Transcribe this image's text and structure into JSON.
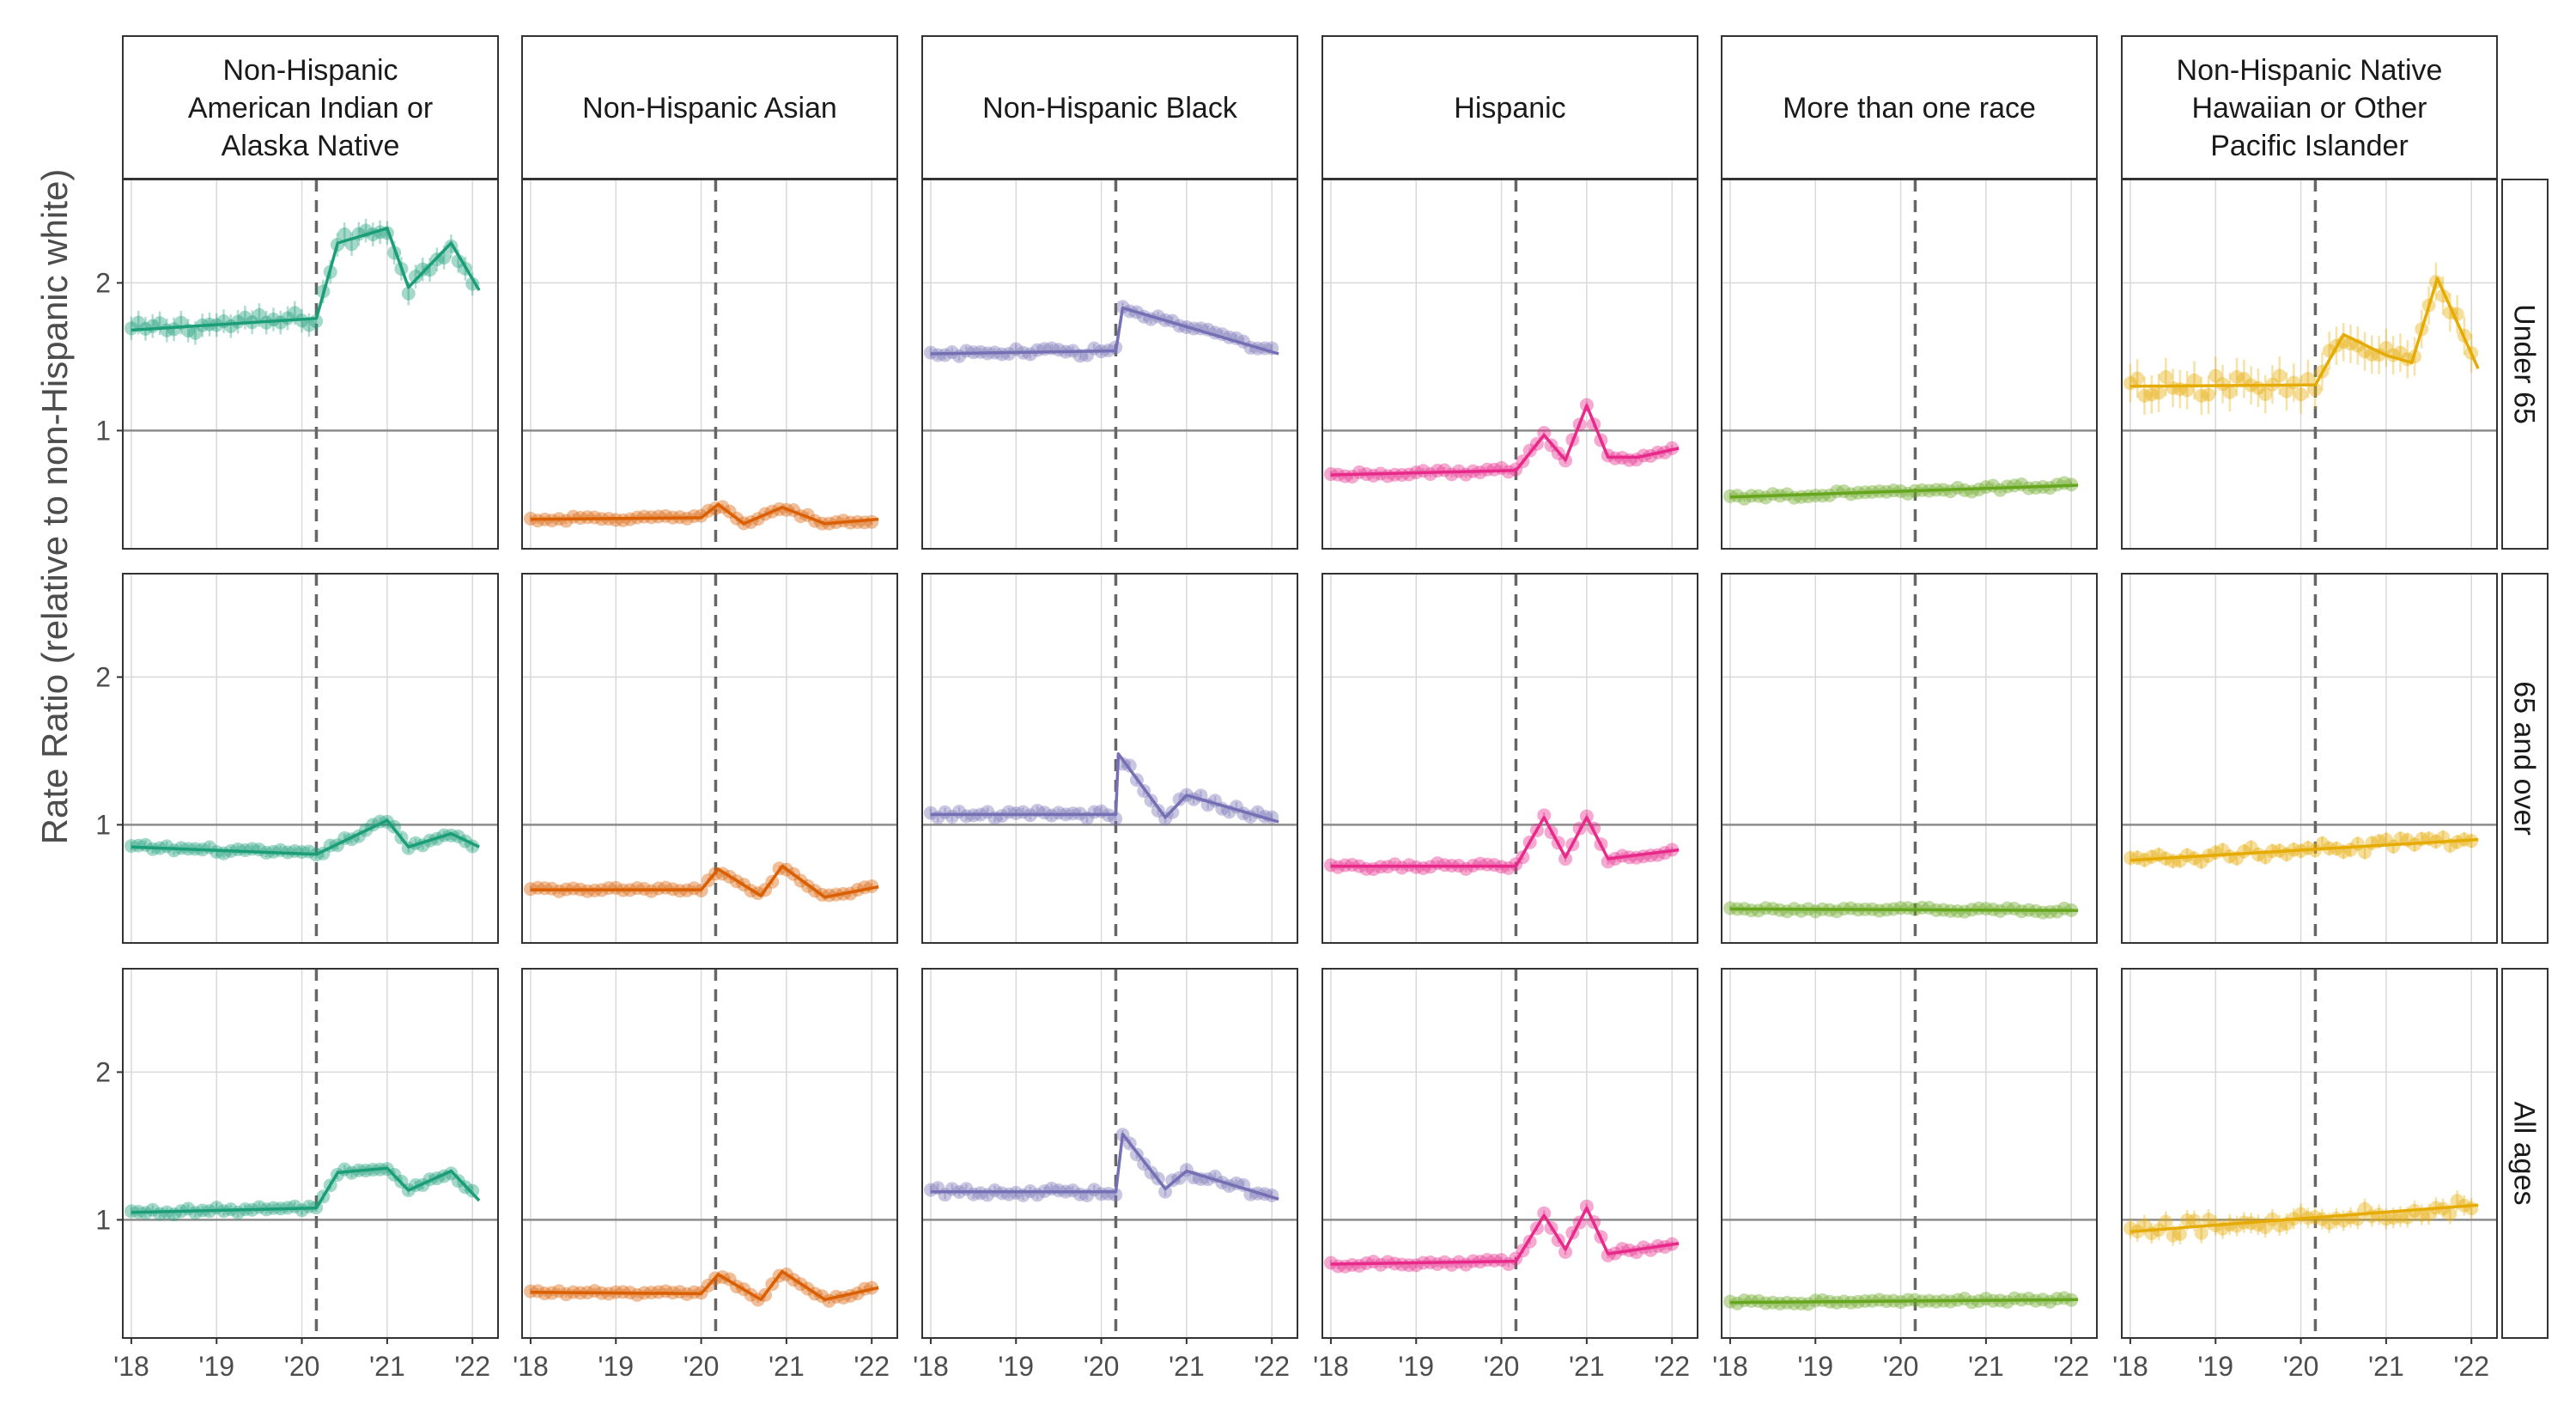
{
  "chart_data": {
    "type": "scatter",
    "ylabel": "Rate Ratio (relative to non-Hispanic white)",
    "y_ticks": [
      "1",
      "2"
    ],
    "x_ticks": [
      "'18",
      "'19",
      "'20",
      "'21",
      "'22"
    ],
    "ylim": [
      0.2,
      2.7
    ],
    "xlim": [
      2017.9,
      2022.3
    ],
    "pandemic_onset": 2020.17,
    "reference_line": 1,
    "columns": [
      {
        "label": "Non-Hispanic American Indian or Alaska Native",
        "lines": [
          "Non-Hispanic",
          "American Indian or",
          "Alaska Native"
        ],
        "color": "#1b9e77"
      },
      {
        "label": "Non-Hispanic Asian",
        "lines": [
          "Non-Hispanic Asian"
        ],
        "color": "#d95f02"
      },
      {
        "label": "Non-Hispanic Black",
        "lines": [
          "Non-Hispanic Black"
        ],
        "color": "#7570b3"
      },
      {
        "label": "Hispanic",
        "lines": [
          "Hispanic"
        ],
        "color": "#e7298a"
      },
      {
        "label": "More than one race",
        "lines": [
          "More than one race"
        ],
        "color": "#66a61e"
      },
      {
        "label": "Non-Hispanic Native Hawaiian or Other Pacific Islander",
        "lines": [
          "Non-Hispanic Native",
          "Hawaiian or Other",
          "Pacific Islander"
        ],
        "color": "#e6ab02"
      }
    ],
    "rows": [
      "Under 65",
      "65 and over",
      "All ages"
    ],
    "panels": [
      [
        {
          "trend": [
            [
              2018,
              1.68
            ],
            [
              2020.17,
              1.76
            ],
            [
              2020.42,
              2.27
            ],
            [
              2021.0,
              2.37
            ],
            [
              2021.25,
              1.97
            ],
            [
              2021.75,
              2.27
            ],
            [
              2022.08,
              1.95
            ]
          ],
          "noise": 0.05,
          "err": 0.08
        },
        {
          "trend": [
            [
              2018,
              0.4
            ],
            [
              2020.0,
              0.41
            ],
            [
              2020.2,
              0.5
            ],
            [
              2020.5,
              0.37
            ],
            [
              2020.95,
              0.48
            ],
            [
              2021.45,
              0.37
            ],
            [
              2022.08,
              0.4
            ]
          ],
          "noise": 0.015,
          "err": 0.02
        },
        {
          "trend": [
            [
              2018,
              1.52
            ],
            [
              2020.17,
              1.54
            ],
            [
              2020.25,
              1.83
            ],
            [
              2022.08,
              1.52
            ]
          ],
          "noise": 0.03,
          "err": 0.03
        },
        {
          "trend": [
            [
              2018,
              0.7
            ],
            [
              2020.17,
              0.73
            ],
            [
              2020.5,
              0.97
            ],
            [
              2020.75,
              0.8
            ],
            [
              2021.0,
              1.17
            ],
            [
              2021.25,
              0.82
            ],
            [
              2021.6,
              0.82
            ],
            [
              2022.08,
              0.88
            ]
          ],
          "noise": 0.02,
          "err": 0.02
        },
        {
          "trend": [
            [
              2018,
              0.55
            ],
            [
              2022.08,
              0.63
            ]
          ],
          "noise": 0.02,
          "err": 0.02
        },
        {
          "trend": [
            [
              2018,
              1.3
            ],
            [
              2020.17,
              1.31
            ],
            [
              2020.5,
              1.65
            ],
            [
              2021.0,
              1.51
            ],
            [
              2021.3,
              1.46
            ],
            [
              2021.6,
              2.03
            ],
            [
              2022.08,
              1.42
            ]
          ],
          "noise": 0.07,
          "err": 0.13
        }
      ],
      [
        {
          "trend": [
            [
              2018,
              0.85
            ],
            [
              2020.17,
              0.8
            ],
            [
              2021.0,
              1.03
            ],
            [
              2021.25,
              0.85
            ],
            [
              2021.75,
              0.94
            ],
            [
              2022.08,
              0.85
            ]
          ],
          "noise": 0.02,
          "err": 0.03
        },
        {
          "trend": [
            [
              2018,
              0.56
            ],
            [
              2020.0,
              0.56
            ],
            [
              2020.2,
              0.7
            ],
            [
              2020.7,
              0.52
            ],
            [
              2020.95,
              0.72
            ],
            [
              2021.45,
              0.51
            ],
            [
              2022.08,
              0.58
            ]
          ],
          "noise": 0.015,
          "err": 0.02
        },
        {
          "trend": [
            [
              2018,
              1.07
            ],
            [
              2020.17,
              1.07
            ],
            [
              2020.2,
              1.48
            ],
            [
              2020.75,
              1.05
            ],
            [
              2021.0,
              1.2
            ],
            [
              2022.08,
              1.02
            ]
          ],
          "noise": 0.03,
          "err": 0.03
        },
        {
          "trend": [
            [
              2018,
              0.72
            ],
            [
              2020.17,
              0.72
            ],
            [
              2020.5,
              1.05
            ],
            [
              2020.75,
              0.78
            ],
            [
              2021.0,
              1.05
            ],
            [
              2021.25,
              0.77
            ],
            [
              2022.08,
              0.83
            ]
          ],
          "noise": 0.02,
          "err": 0.02
        },
        {
          "trend": [
            [
              2018,
              0.43
            ],
            [
              2022.08,
              0.42
            ]
          ],
          "noise": 0.015,
          "err": 0.015
        },
        {
          "trend": [
            [
              2018,
              0.76
            ],
            [
              2022.08,
              0.9
            ]
          ],
          "noise": 0.04,
          "err": 0.05
        }
      ],
      [
        {
          "trend": [
            [
              2018,
              1.05
            ],
            [
              2020.17,
              1.08
            ],
            [
              2020.42,
              1.32
            ],
            [
              2021.0,
              1.35
            ],
            [
              2021.25,
              1.2
            ],
            [
              2021.75,
              1.33
            ],
            [
              2022.08,
              1.13
            ]
          ],
          "noise": 0.02,
          "err": 0.03
        },
        {
          "trend": [
            [
              2018,
              0.51
            ],
            [
              2020.0,
              0.5
            ],
            [
              2020.2,
              0.63
            ],
            [
              2020.7,
              0.46
            ],
            [
              2020.95,
              0.65
            ],
            [
              2021.45,
              0.46
            ],
            [
              2022.08,
              0.54
            ]
          ],
          "noise": 0.015,
          "err": 0.02
        },
        {
          "trend": [
            [
              2018,
              1.19
            ],
            [
              2020.17,
              1.19
            ],
            [
              2020.25,
              1.58
            ],
            [
              2020.75,
              1.21
            ],
            [
              2021.0,
              1.33
            ],
            [
              2022.08,
              1.14
            ]
          ],
          "noise": 0.03,
          "err": 0.03
        },
        {
          "trend": [
            [
              2018,
              0.7
            ],
            [
              2020.17,
              0.72
            ],
            [
              2020.5,
              1.03
            ],
            [
              2020.75,
              0.8
            ],
            [
              2021.0,
              1.08
            ],
            [
              2021.25,
              0.77
            ],
            [
              2022.08,
              0.84
            ]
          ],
          "noise": 0.02,
          "err": 0.02
        },
        {
          "trend": [
            [
              2018,
              0.44
            ],
            [
              2022.08,
              0.46
            ]
          ],
          "noise": 0.015,
          "err": 0.015
        },
        {
          "trend": [
            [
              2018,
              0.92
            ],
            [
              2022.08,
              1.1
            ]
          ],
          "noise": 0.05,
          "err": 0.07
        }
      ]
    ]
  }
}
